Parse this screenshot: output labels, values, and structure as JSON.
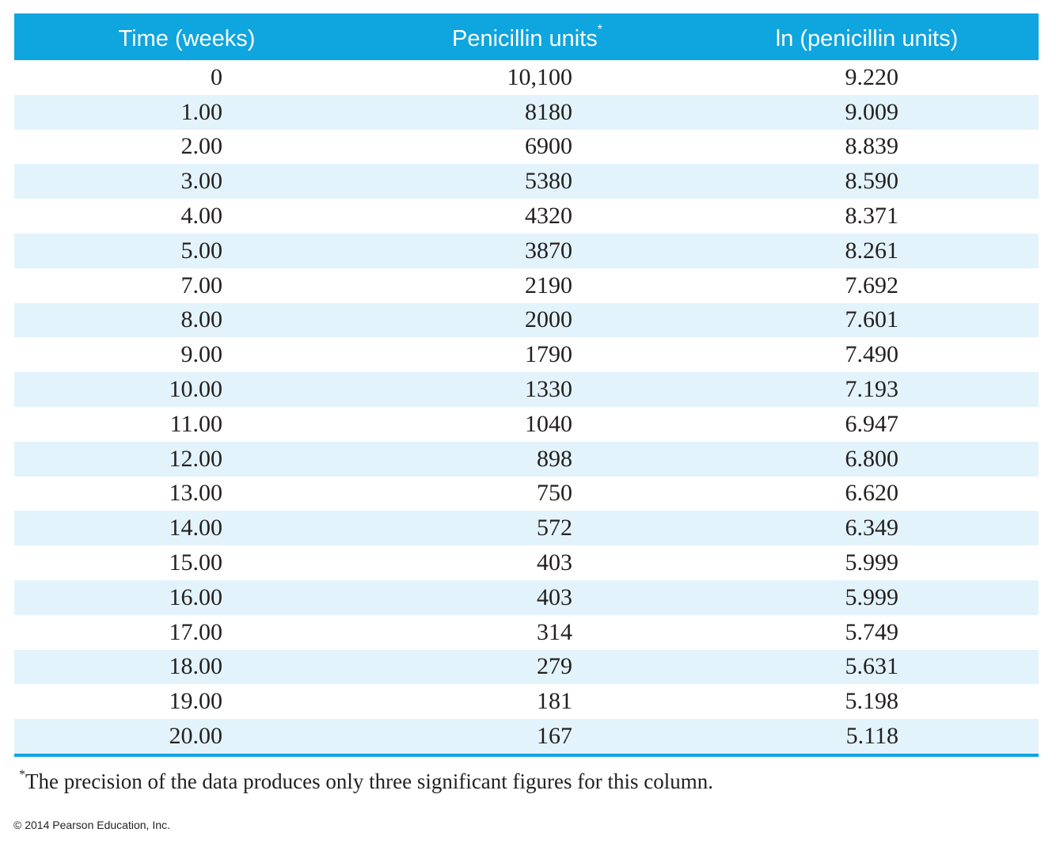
{
  "table": {
    "headers": {
      "time": "Time (weeks)",
      "penicillin": "Penicillin units",
      "penicillin_mark": "*",
      "ln": "ln (penicillin units)"
    },
    "rows": [
      {
        "time": "0",
        "penicillin": "10,100",
        "ln": "9.220"
      },
      {
        "time": "1.00",
        "penicillin": "8180",
        "ln": "9.009"
      },
      {
        "time": "2.00",
        "penicillin": "6900",
        "ln": "8.839"
      },
      {
        "time": "3.00",
        "penicillin": "5380",
        "ln": "8.590"
      },
      {
        "time": "4.00",
        "penicillin": "4320",
        "ln": "8.371"
      },
      {
        "time": "5.00",
        "penicillin": "3870",
        "ln": "8.261"
      },
      {
        "time": "7.00",
        "penicillin": "2190",
        "ln": "7.692"
      },
      {
        "time": "8.00",
        "penicillin": "2000",
        "ln": "7.601"
      },
      {
        "time": "9.00",
        "penicillin": "1790",
        "ln": "7.490"
      },
      {
        "time": "10.00",
        "penicillin": "1330",
        "ln": "7.193"
      },
      {
        "time": "11.00",
        "penicillin": "1040",
        "ln": "6.947"
      },
      {
        "time": "12.00",
        "penicillin": "898",
        "ln": "6.800"
      },
      {
        "time": "13.00",
        "penicillin": "750",
        "ln": "6.620"
      },
      {
        "time": "14.00",
        "penicillin": "572",
        "ln": "6.349"
      },
      {
        "time": "15.00",
        "penicillin": "403",
        "ln": "5.999"
      },
      {
        "time": "16.00",
        "penicillin": "403",
        "ln": "5.999"
      },
      {
        "time": "17.00",
        "penicillin": "314",
        "ln": "5.749"
      },
      {
        "time": "18.00",
        "penicillin": "279",
        "ln": "5.631"
      },
      {
        "time": "19.00",
        "penicillin": "181",
        "ln": "5.198"
      },
      {
        "time": "20.00",
        "penicillin": "167",
        "ln": "5.118"
      }
    ]
  },
  "footnote": {
    "mark": "*",
    "text": "The precision of the data produces only three significant figures for this column."
  },
  "copyright": "© 2014 Pearson Education, Inc.",
  "colors": {
    "header_bg": "#0fa5df",
    "stripe_bg": "#e3f3fb",
    "header_text": "#ffffff"
  }
}
